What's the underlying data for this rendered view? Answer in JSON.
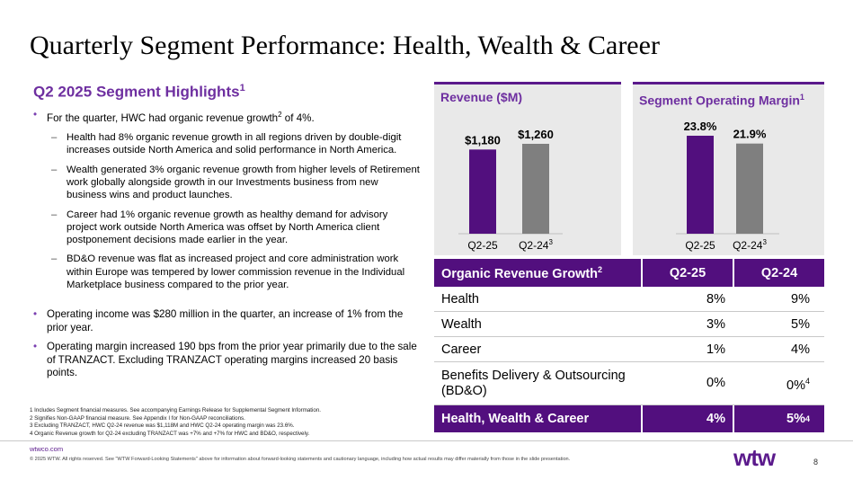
{
  "title": "Quarterly Segment Performance: Health, Wealth & Career",
  "highlights": {
    "title": "Q2 2025 Segment Highlights",
    "title_sup": "1",
    "b1": {
      "pre": "For the quarter, HWC had organic revenue growth",
      "sup": "2",
      "post": " of 4%."
    },
    "s1": "Health had 8% organic revenue growth in all regions driven by double-digit increases outside North America and solid performance in North America.",
    "s2": "Wealth generated 3% organic revenue growth from higher levels of Retirement work globally alongside growth in our Investments business from new business wins and product launches.",
    "s3": "Career had 1% organic revenue growth as healthy demand for advisory project work outside North America was offset by North America client postponement decisions made earlier in the year.",
    "s4": "BD&O revenue was flat as increased project and core administration work within Europe was tempered by lower commission revenue in the Individual Marketplace business compared to the prior year.",
    "b2": "Operating income was $280 million in the quarter, an increase of 1% from the prior year.",
    "b3": "Operating margin increased 190 bps from the prior year primarily due to the sale of TRANZACT. Excluding TRANZACT operating margins increased 20 basis points."
  },
  "footnotes": [
    "1 Includes Segment financial measures. See accompanying Earnings Release for Supplemental Segment Information.",
    "2 Signifies Non-GAAP financial measure. See Appendix I for Non-GAAP reconciliations.",
    "3 Excluding TRANZACT, HWC Q2-24 revenue was $1,118M and HWC Q2-24 operating margin was 23.6%.",
    "4 Organic Revenue growth for Q2-24 excluding TRANZACT was +7% and +7% for HWC and BD&O, respectively."
  ],
  "revenue_panel": {
    "title": "Revenue ($M)"
  },
  "margin_panel": {
    "title": "Segment Operating Margin",
    "title_sup": "1"
  },
  "chart_data": [
    {
      "type": "bar",
      "title": "Revenue ($M)",
      "categories": [
        "Q2-25",
        "Q2-24"
      ],
      "category_sups": [
        "",
        "3"
      ],
      "values": [
        1180,
        1260
      ],
      "labels": [
        "$1,180",
        "$1,260"
      ],
      "colors": [
        "#520f7e",
        "#7f7f7f"
      ]
    },
    {
      "type": "bar",
      "title": "Segment Operating Margin",
      "categories": [
        "Q2-25",
        "Q2-24"
      ],
      "category_sups": [
        "",
        "3"
      ],
      "values": [
        23.8,
        21.9
      ],
      "labels": [
        "23.8%",
        "21.9%"
      ],
      "colors": [
        "#520f7e",
        "#7f7f7f"
      ]
    }
  ],
  "table": {
    "header": {
      "c1": "Organic Revenue Growth",
      "c1_sup": "2",
      "c2": "Q2-25",
      "c3": "Q2-24"
    },
    "rows": [
      {
        "c1": "Health",
        "c2": "8%",
        "c3": "9%"
      },
      {
        "c1": "Wealth",
        "c2": "3%",
        "c3": "5%"
      },
      {
        "c1": "Career",
        "c2": "1%",
        "c3": "4%"
      },
      {
        "c1": "Benefits Delivery & Outsourcing (BD&O)",
        "c2": "0%",
        "c3": "0%",
        "c3_sup": "4"
      }
    ],
    "total": {
      "c1": "Health, Wealth & Career",
      "c2": "4%",
      "c3": "5%",
      "c3_sup": "4"
    }
  },
  "footer": {
    "url": "wtwco.com",
    "copyright": "© 2025 WTW. All rights reserved. See \"WTW Forward-Looking Statements\" above for information about forward-looking statements and cautionary language, including how actual results may differ materially from those in the slide presentation.",
    "logo_text": "wtw",
    "page": "8"
  },
  "colors": {
    "accent": "#520f7e",
    "heading": "#6e2fa0",
    "gray_bar": "#7f7f7f",
    "panel_bg": "#e9e9e9"
  }
}
